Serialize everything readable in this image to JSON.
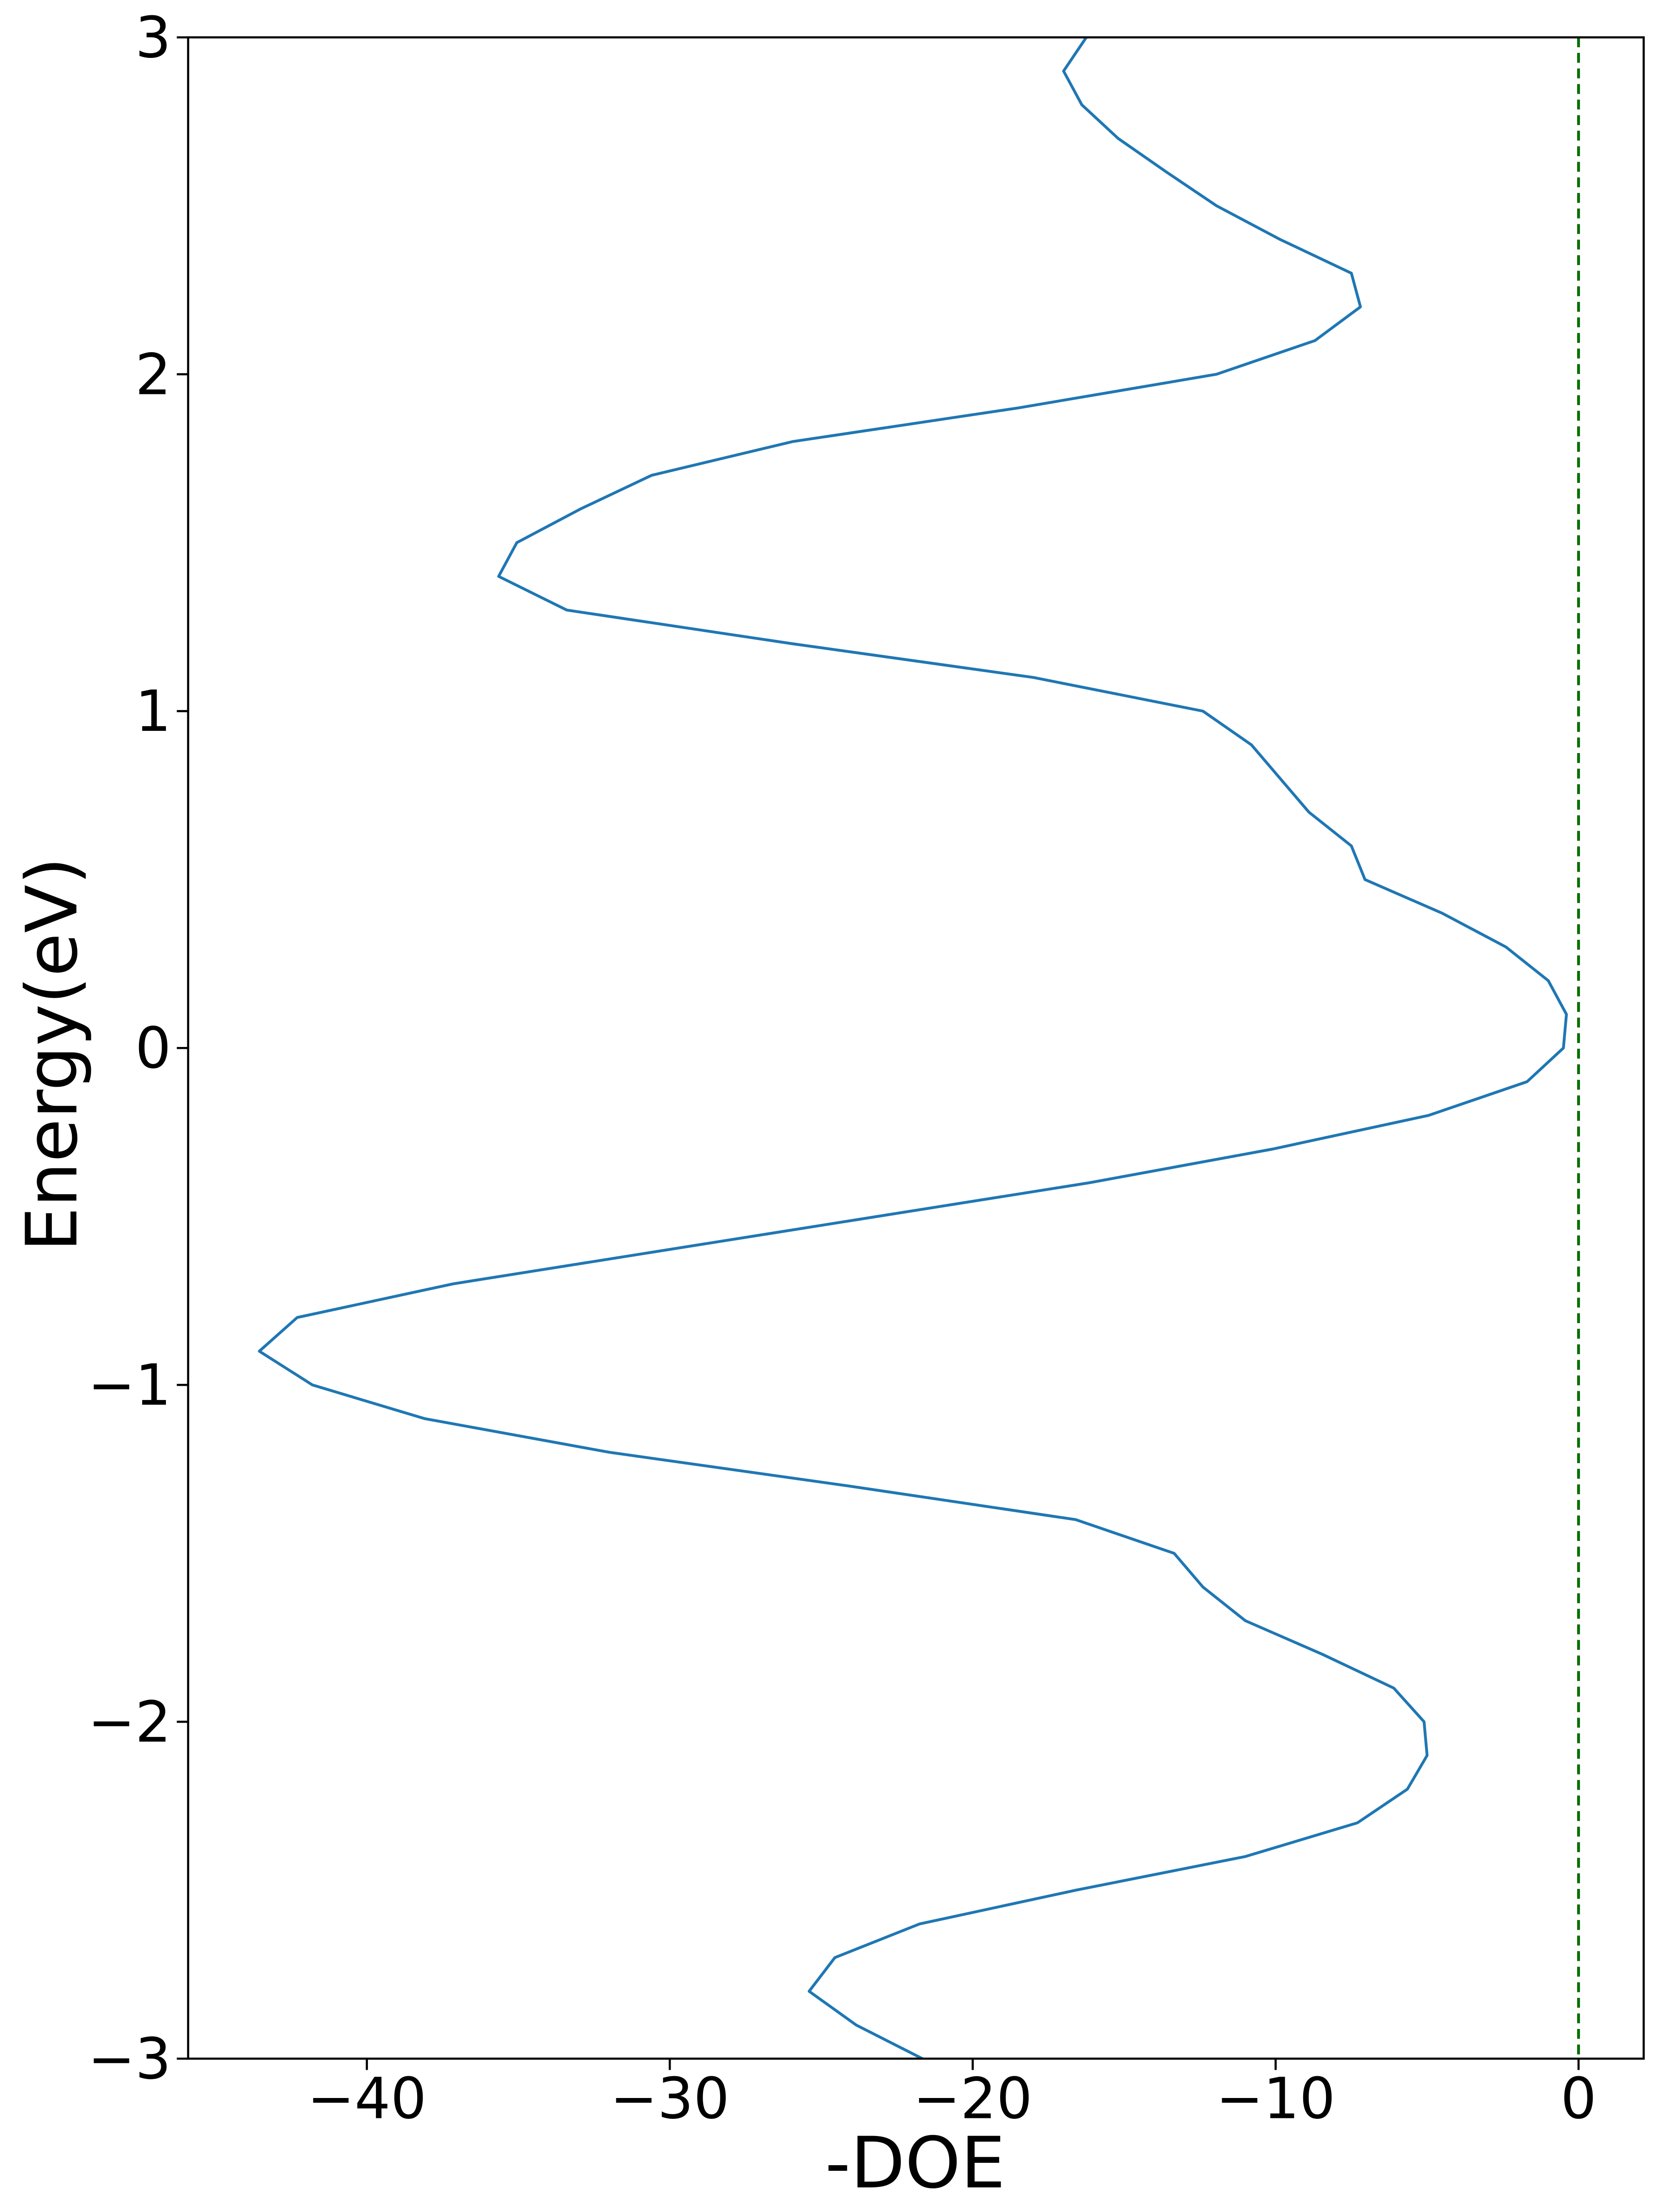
{
  "chart_data": {
    "type": "line",
    "x_label": "-DOE",
    "y_label": "Energy(eV)",
    "xlim": [
      -45.9,
      2.15
    ],
    "ylim": [
      -3,
      3
    ],
    "xticks": [
      {
        "value": -40,
        "label": "−40"
      },
      {
        "value": -30,
        "label": "−30"
      },
      {
        "value": -20,
        "label": "−20"
      },
      {
        "value": -10,
        "label": "−10"
      },
      0
    ],
    "yticks": [
      {
        "value": -3,
        "label": "−3"
      },
      {
        "value": -2,
        "label": "−2"
      },
      {
        "value": -1,
        "label": "−1"
      },
      0,
      1,
      2,
      3
    ],
    "vline": {
      "x": 0,
      "color": "#007000",
      "style": "dashed"
    },
    "series": [
      {
        "color": "#1f77b4",
        "y": [
          -3.0,
          -2.9,
          -2.8,
          -2.7,
          -2.6,
          -2.5,
          -2.4,
          -2.3,
          -2.2,
          -2.1,
          -2.0,
          -1.9,
          -1.8,
          -1.7,
          -1.6,
          -1.5,
          -1.4,
          -1.3,
          -1.2,
          -1.1,
          -1.0,
          -0.9,
          -0.8,
          -0.7,
          -0.6,
          -0.5,
          -0.4,
          -0.3,
          -0.2,
          -0.1,
          0.0,
          0.1,
          0.2,
          0.3,
          0.4,
          0.5,
          0.6,
          0.7,
          0.8,
          0.9,
          1.0,
          1.1,
          1.2,
          1.3,
          1.4,
          1.5,
          1.6,
          1.7,
          1.8,
          1.9,
          2.0,
          2.1,
          2.2,
          2.3,
          2.4,
          2.5,
          2.6,
          2.7,
          2.8,
          2.9,
          3.0
        ],
        "x": [
          -21.66,
          -23.85,
          -25.4,
          -24.55,
          -21.75,
          -16.6,
          -11.0,
          -7.3,
          -5.65,
          -5.0,
          -5.1,
          -6.1,
          -8.45,
          -11.0,
          -12.4,
          -13.35,
          -16.6,
          -24.1,
          -32.0,
          -38.1,
          -41.8,
          -43.55,
          -42.3,
          -37.15,
          -30.15,
          -23.15,
          -16.15,
          -10.1,
          -4.95,
          -1.7,
          -0.5,
          -0.4,
          -1.0,
          -2.4,
          -4.5,
          -7.05,
          -7.5,
          -8.9,
          -9.85,
          -10.8,
          -12.4,
          -18.0,
          -25.95,
          -33.4,
          -35.65,
          -35.05,
          -32.95,
          -30.6,
          -25.95,
          -18.5,
          -11.95,
          -8.7,
          -7.2,
          -7.5,
          -9.85,
          -11.95,
          -13.6,
          -15.2,
          -16.4,
          -17.0,
          -16.25
        ]
      }
    ]
  }
}
